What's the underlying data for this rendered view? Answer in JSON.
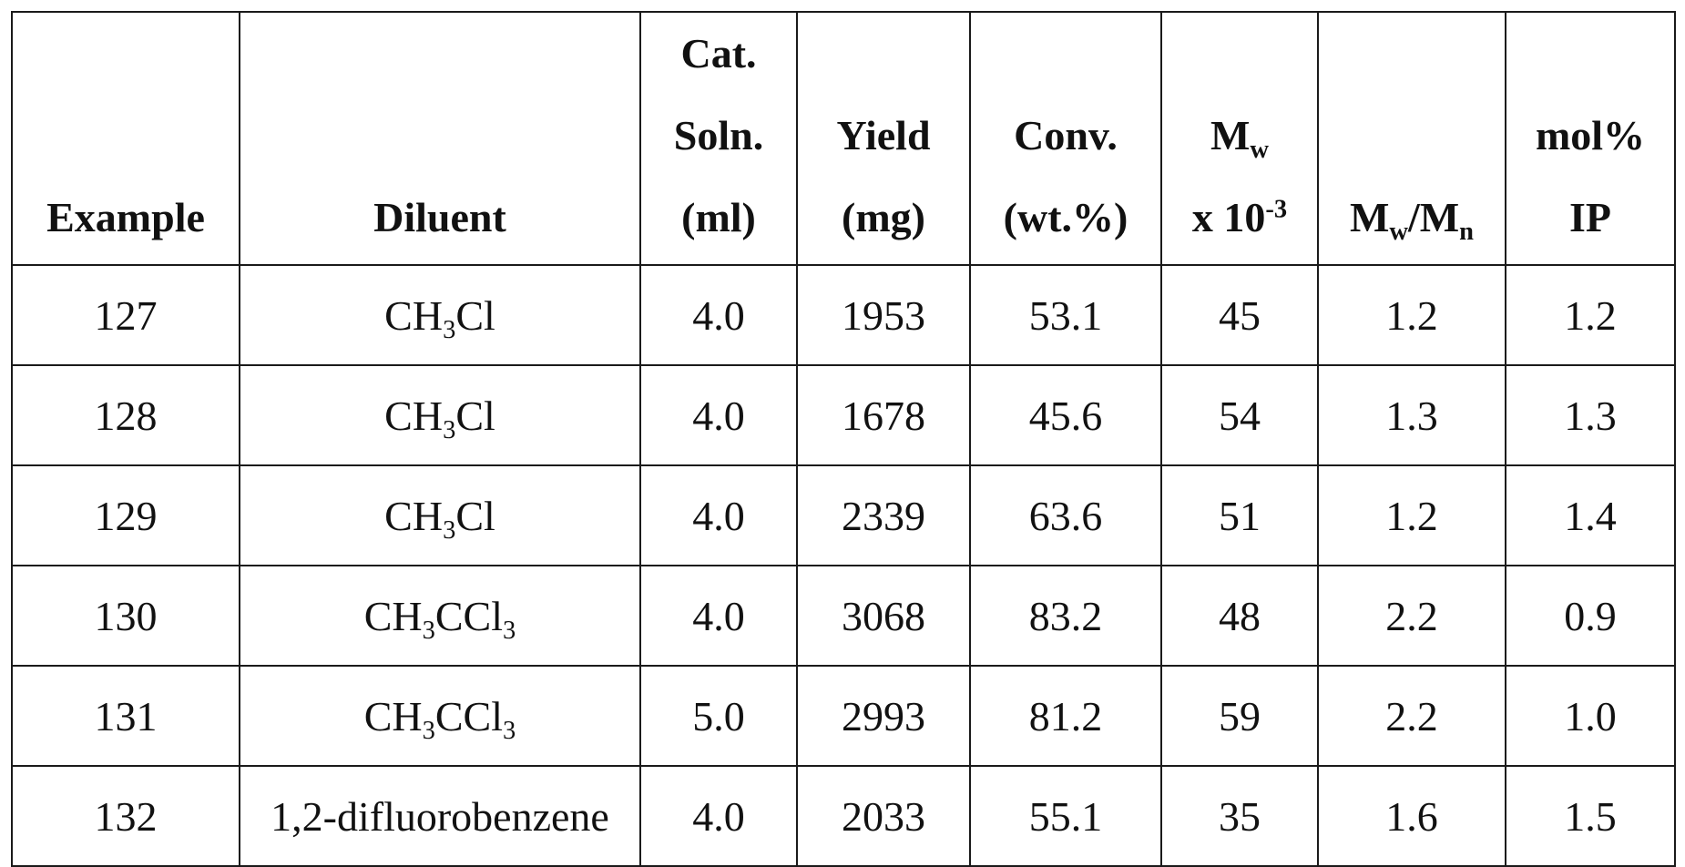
{
  "table": {
    "headers": [
      {
        "lines": [
          {
            "text": "Example"
          }
        ]
      },
      {
        "lines": [
          {
            "text": "Diluent"
          }
        ]
      },
      {
        "lines": [
          {
            "text": "Cat."
          },
          {
            "text": "Soln."
          },
          {
            "text": "(ml)"
          }
        ]
      },
      {
        "lines": [
          {
            "text": "Yield"
          },
          {
            "text": "(mg)"
          }
        ]
      },
      {
        "lines": [
          {
            "text": "Conv."
          },
          {
            "text": "(wt.%)"
          }
        ]
      },
      {
        "lines": [
          {
            "text": "M",
            "sub": "w"
          },
          {
            "text": "x 10",
            "sup": "-3"
          }
        ]
      },
      {
        "lines": [
          {
            "text": "M",
            "sub": "w",
            "text2": "/M",
            "sub2": "n"
          }
        ]
      },
      {
        "lines": [
          {
            "text": "mol%"
          },
          {
            "text": "IP"
          }
        ]
      }
    ],
    "rows": [
      {
        "example": "127",
        "diluent": {
          "text": "CH",
          "sub": "3",
          "text2": "Cl"
        },
        "cat": "4.0",
        "yield": "1953",
        "conv": "53.1",
        "mw": "45",
        "mwmn": "1.2",
        "ip": "1.2"
      },
      {
        "example": "128",
        "diluent": {
          "text": "CH",
          "sub": "3",
          "text2": "Cl"
        },
        "cat": "4.0",
        "yield": "1678",
        "conv": "45.6",
        "mw": "54",
        "mwmn": "1.3",
        "ip": "1.3"
      },
      {
        "example": "129",
        "diluent": {
          "text": "CH",
          "sub": "3",
          "text2": "Cl"
        },
        "cat": "4.0",
        "yield": "2339",
        "conv": "63.6",
        "mw": "51",
        "mwmn": "1.2",
        "ip": "1.4"
      },
      {
        "example": "130",
        "diluent": {
          "text": "CH",
          "sub": "3",
          "text2": "CCl",
          "sub2": "3"
        },
        "cat": "4.0",
        "yield": "3068",
        "conv": "83.2",
        "mw": "48",
        "mwmn": "2.2",
        "ip": "0.9"
      },
      {
        "example": "131",
        "diluent": {
          "text": "CH",
          "sub": "3",
          "text2": "CCl",
          "sub2": "3"
        },
        "cat": "5.0",
        "yield": "2993",
        "conv": "81.2",
        "mw": "59",
        "mwmn": "2.2",
        "ip": "1.0"
      },
      {
        "example": "132",
        "diluent": {
          "text": "1,2-difluorobenzene"
        },
        "cat": "4.0",
        "yield": "2033",
        "conv": "55.1",
        "mw": "35",
        "mwmn": "1.6",
        "ip": "1.5"
      }
    ]
  }
}
